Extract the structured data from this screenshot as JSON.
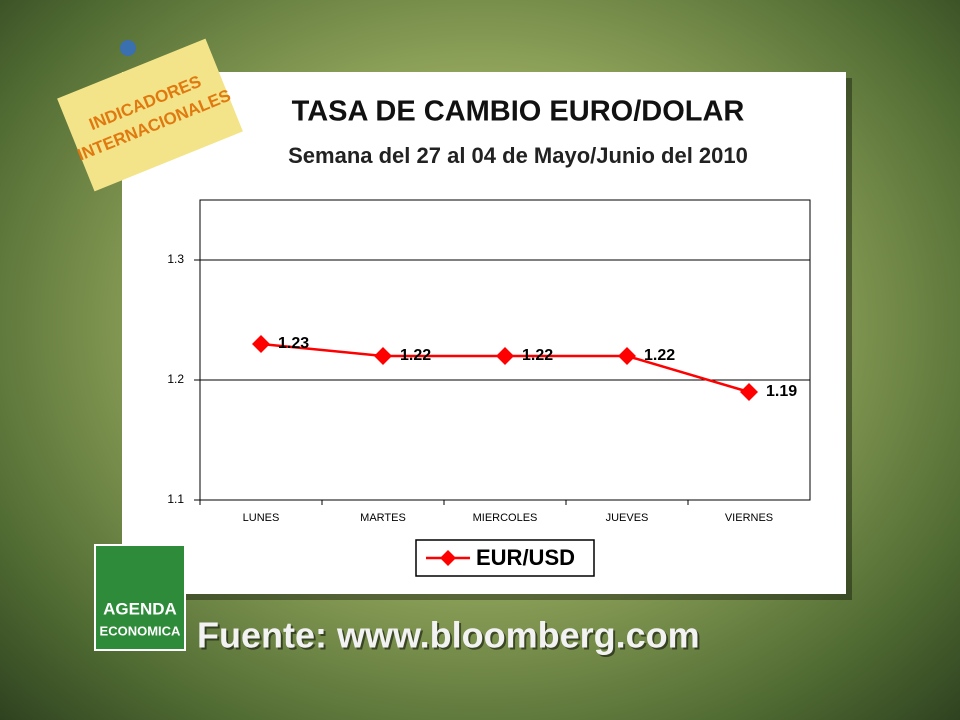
{
  "chart_data": {
    "type": "line",
    "title": "TASA DE CAMBIO EURO/DOLAR",
    "subtitle": "Semana del 27 al 04 de Mayo/Junio del 2010",
    "categories": [
      "LUNES",
      "MARTES",
      "MIERCOLES",
      "JUEVES",
      "VIERNES"
    ],
    "series": [
      {
        "name": "EUR/USD",
        "color": "#ff0000",
        "values": [
          1.23,
          1.22,
          1.22,
          1.22,
          1.19
        ]
      }
    ],
    "ylim": [
      1.1,
      1.35
    ],
    "yticks": [
      1.1,
      1.2,
      1.3
    ],
    "grid": true,
    "legend": "bottom"
  },
  "badge": [
    "INDICADORES",
    "INTERNACIONALES"
  ],
  "logo": [
    "AGENDA",
    "ECONOMICA"
  ],
  "source": "Fuente: www.bloomberg.com"
}
